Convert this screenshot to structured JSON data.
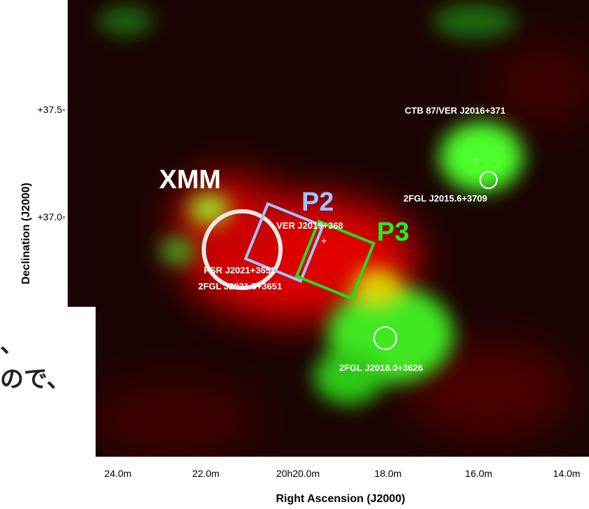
{
  "figure": {
    "y_axis_label": "Declination (J2000)",
    "y_ticks": [
      "+37.5◦",
      "+37.0◦"
    ],
    "x_axis_label": "Right Ascension (J2000)",
    "x_ticks": [
      "24.0m",
      "22.0m",
      "20h20.0m",
      "18.0m",
      "16.0m",
      "14.0m"
    ],
    "annotations": {
      "ctb87": "CTB 87/VER J2016+371",
      "fgl2015": "2FGL J2015.6+3709",
      "xmm": "XMM",
      "p2": "P2",
      "p3": "P3",
      "ver2019": "VER J2019+368",
      "psr": "PSR J2021+3651",
      "fgl2021": "2FGL J2021.5+3651",
      "fgl2018": "2FGL J2018.0+3626"
    }
  },
  "slide_text": [
    "、",
    "ので、"
  ]
}
